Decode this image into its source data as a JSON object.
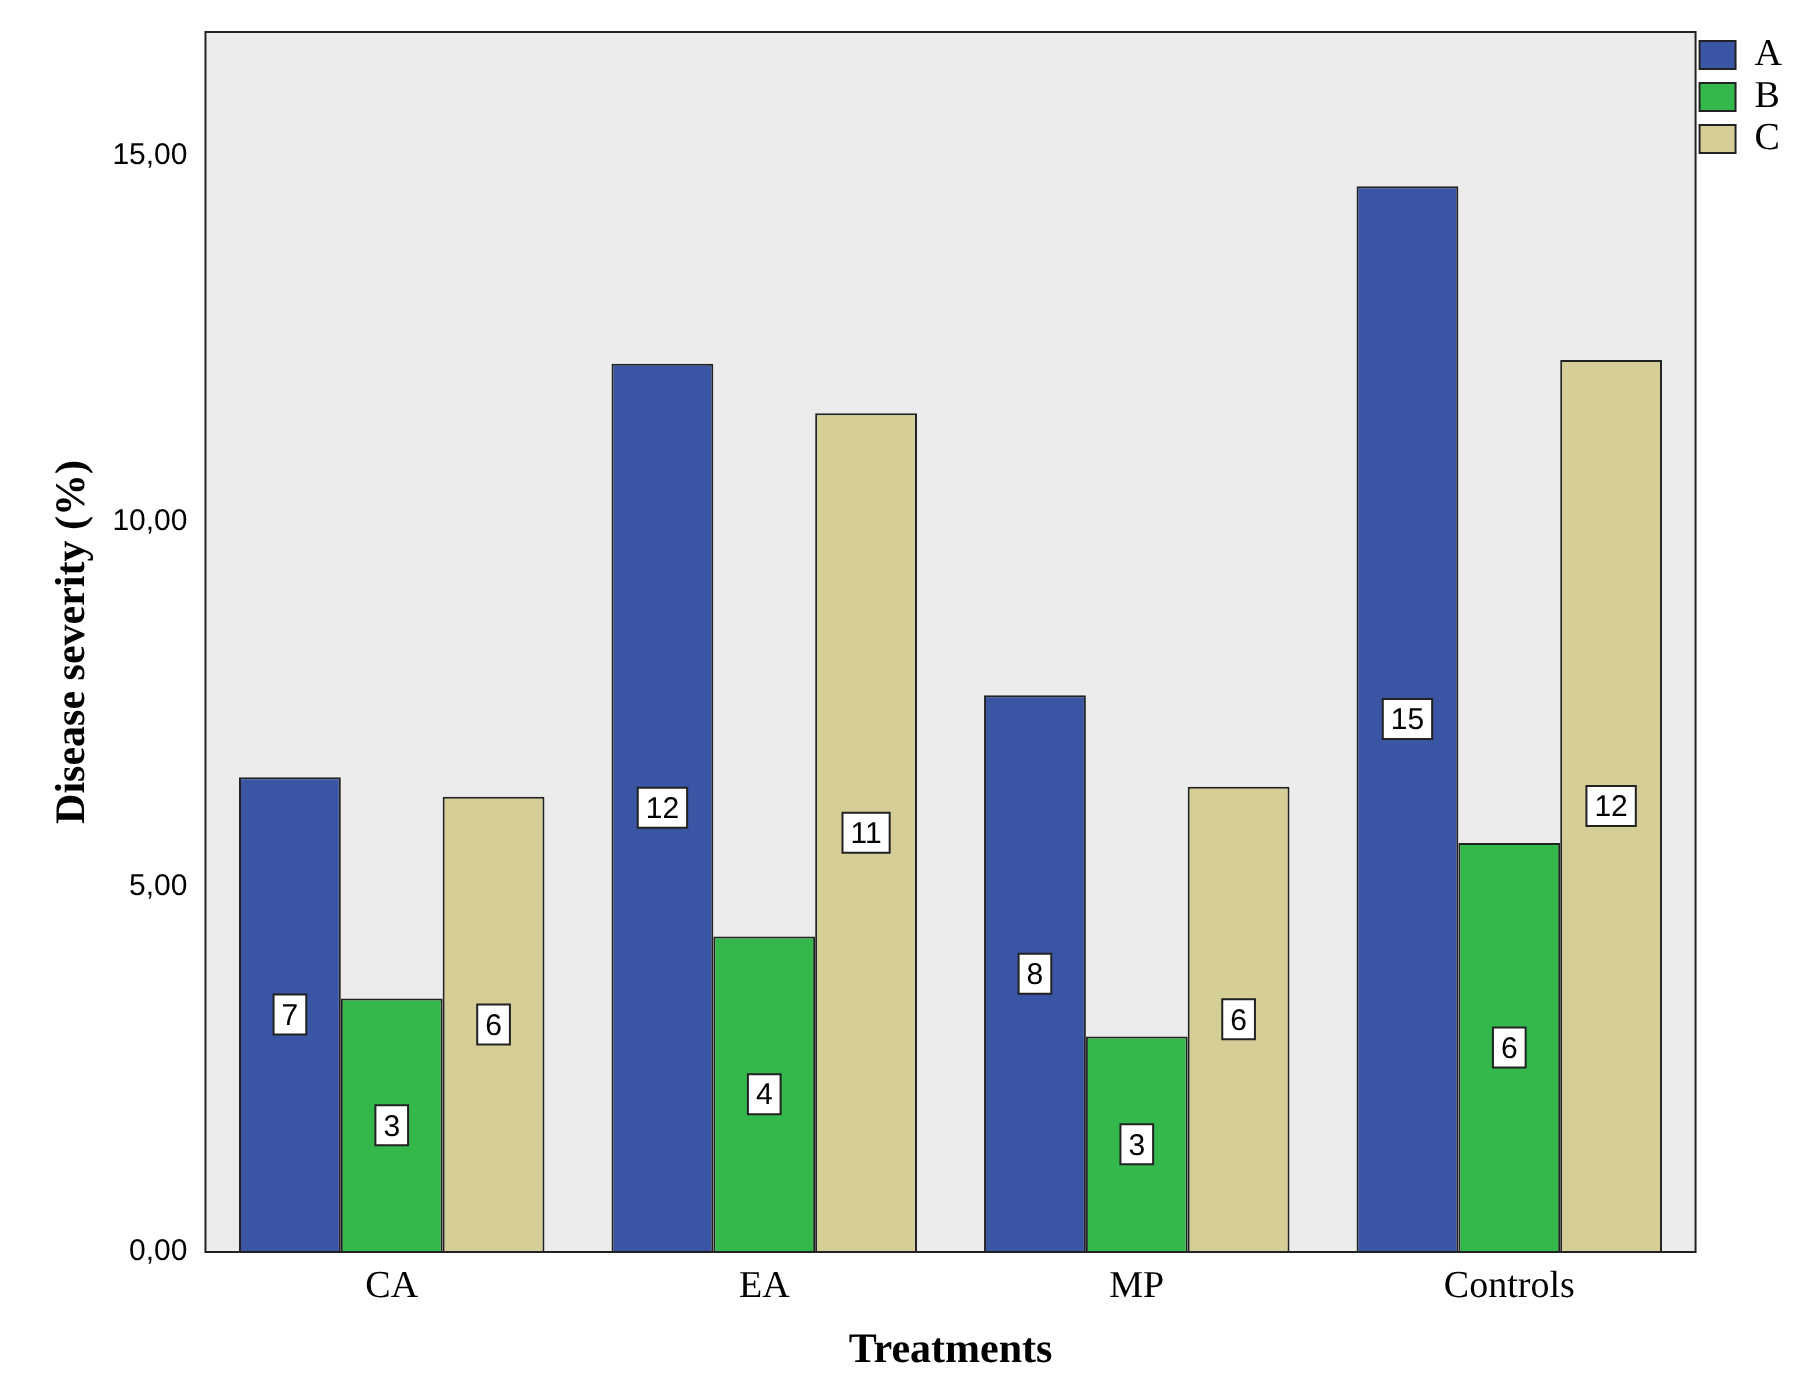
{
  "chart_data": {
    "type": "bar",
    "xlabel": "Treatments",
    "ylabel": "Disease severity (%)",
    "categories": [
      "CA",
      "EA",
      "MP",
      "Controls"
    ],
    "series": [
      {
        "name": "A",
        "color": "#3a55a4",
        "values": [
          6.5,
          12.16,
          7.62,
          14.59
        ],
        "value_labels": [
          "7",
          "12",
          "8",
          "15"
        ]
      },
      {
        "name": "B",
        "color": "#35b84b",
        "values": [
          3.47,
          4.32,
          2.95,
          5.6
        ],
        "value_labels": [
          "3",
          "4",
          "3",
          "6"
        ]
      },
      {
        "name": "C",
        "color": "#d5cf97",
        "values": [
          6.23,
          11.48,
          6.37,
          12.21
        ],
        "value_labels": [
          "6",
          "11",
          "6",
          "12"
        ]
      }
    ],
    "ylim": [
      0,
      16.7
    ],
    "yticks": [
      {
        "value": 0,
        "label": "0,00"
      },
      {
        "value": 5,
        "label": "5,00"
      },
      {
        "value": 10,
        "label": "10,00"
      },
      {
        "value": 15,
        "label": "15,00"
      }
    ],
    "grid": false,
    "legend": "top right"
  }
}
